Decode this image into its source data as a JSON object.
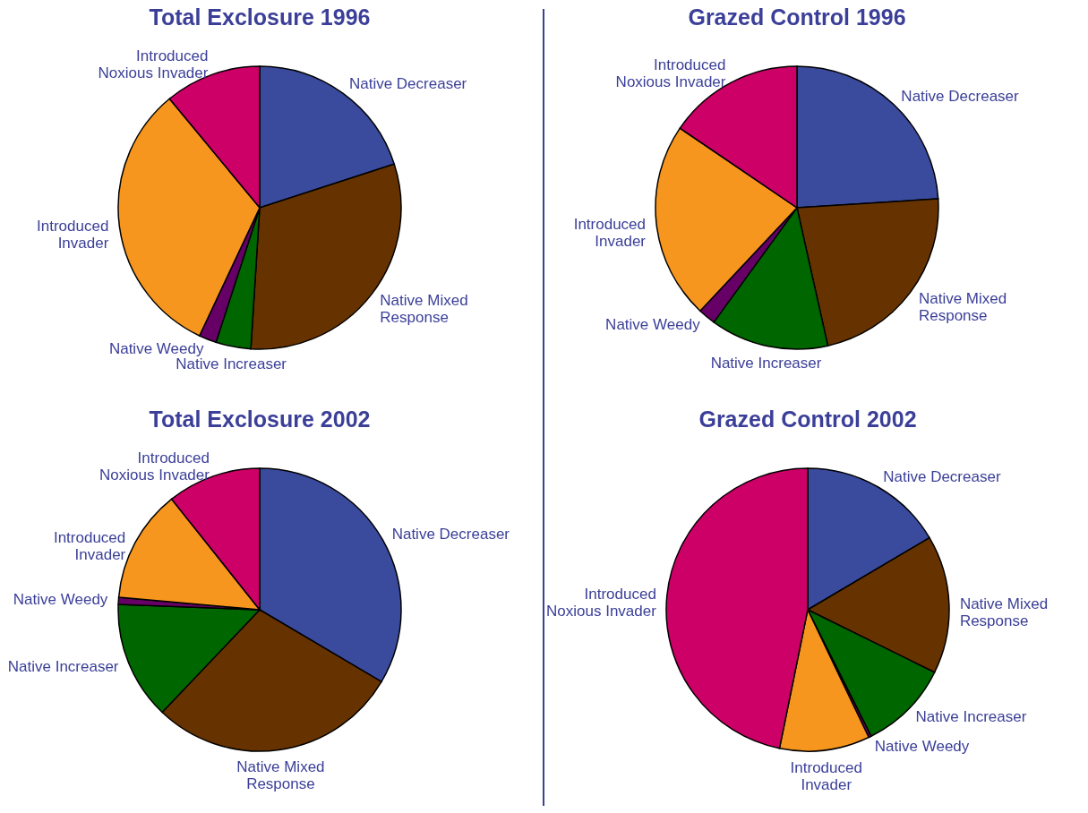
{
  "chart_data": [
    {
      "type": "pie",
      "title": "Total Exclosure 1996",
      "categories": [
        "Native Decreaser",
        "Native Mixed Response",
        "Native Increaser",
        "Native Weedy",
        "Introduced Invader",
        "Introduced Noxious Invader"
      ],
      "values": [
        20,
        31,
        4,
        2,
        32,
        11
      ],
      "colors": [
        "#3a4a9c",
        "#663300",
        "#006600",
        "#660066",
        "#f7961e",
        "#cc0066"
      ]
    },
    {
      "type": "pie",
      "title": "Grazed Control 1996",
      "categories": [
        "Native Decreaser",
        "Native Mixed Response",
        "Native Increaser",
        "Native Weedy",
        "Introduced Invader",
        "Introduced Noxious Invader"
      ],
      "values": [
        24,
        22.5,
        13.5,
        2,
        22.5,
        15.5
      ],
      "colors": [
        "#3a4a9c",
        "#663300",
        "#006600",
        "#660066",
        "#f7961e",
        "#cc0066"
      ]
    },
    {
      "type": "pie",
      "title": "Total Exclosure 2002",
      "categories": [
        "Native Decreaser",
        "Native Mixed Response",
        "Native Increaser",
        "Native Weedy",
        "Introduced Invader",
        "Introduced Noxious Invader"
      ],
      "values": [
        33.5,
        28.6,
        13.5,
        0.8,
        12.9,
        10.7
      ],
      "colors": [
        "#3a4a9c",
        "#663300",
        "#006600",
        "#660066",
        "#f7961e",
        "#cc0066"
      ]
    },
    {
      "type": "pie",
      "title": "Grazed Control 2002",
      "categories": [
        "Native Decreaser",
        "Native Mixed Response",
        "Native Increaser",
        "Native Weedy",
        "Introduced Invader",
        "Introduced Noxious Invader"
      ],
      "values": [
        16.5,
        15.8,
        10.3,
        0.3,
        10.3,
        46.8
      ],
      "colors": [
        "#3a4a9c",
        "#663300",
        "#006600",
        "#660066",
        "#f7961e",
        "#cc0066"
      ]
    }
  ]
}
